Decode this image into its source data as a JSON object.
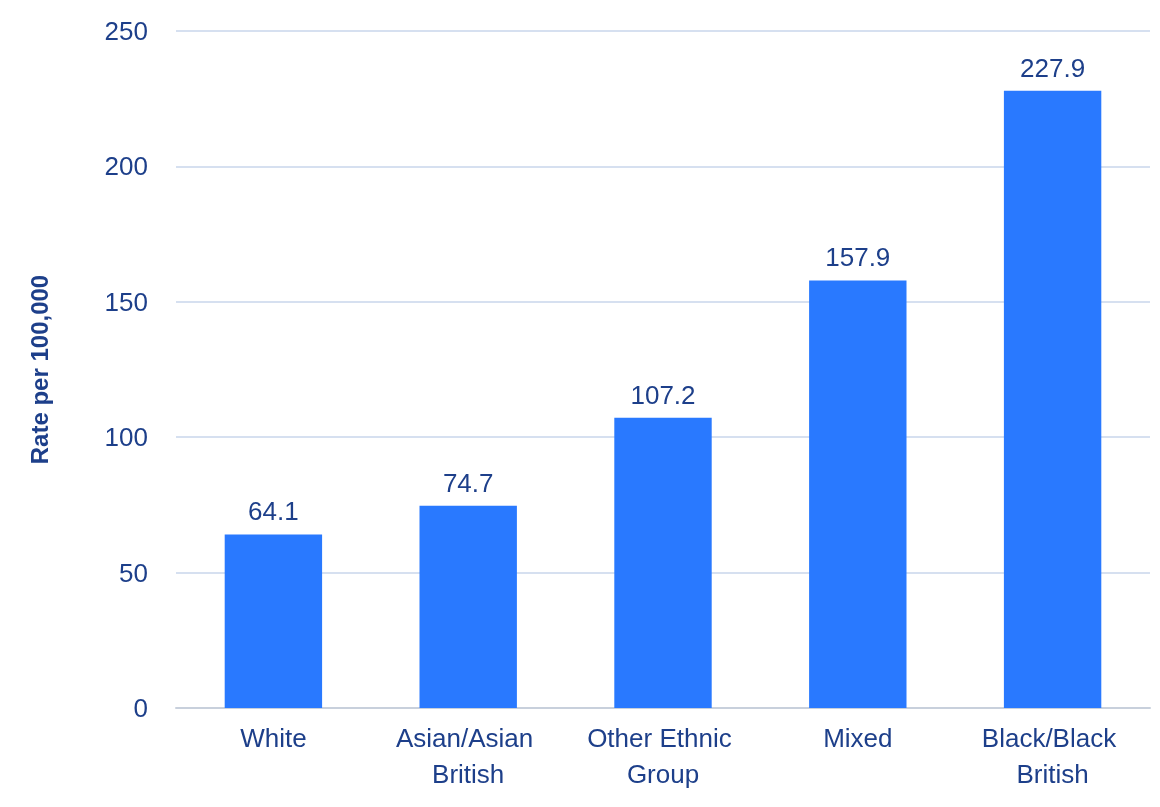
{
  "chart_data": {
    "type": "bar",
    "ylabel": "Rate per 100,000",
    "categories": [
      "White",
      "Asian/Asian British",
      "Other Ethnic Group",
      "Mixed",
      "Black/Black British"
    ],
    "values": [
      64.1,
      74.7,
      107.2,
      157.9,
      227.9
    ],
    "color": "#2979ff",
    "ylim": [
      0,
      250
    ],
    "yticks": [
      0,
      50,
      100,
      150,
      200,
      250
    ],
    "grid": "y",
    "data_labels": true
  }
}
